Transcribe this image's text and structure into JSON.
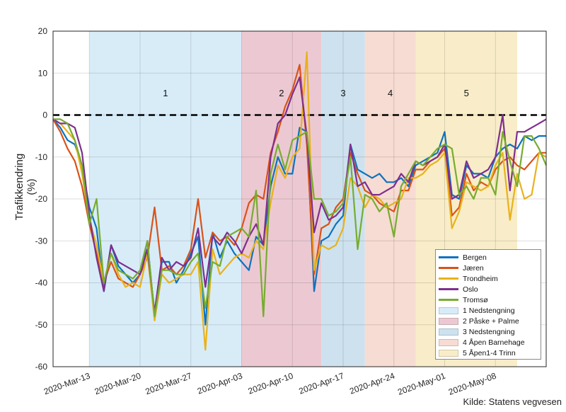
{
  "source_note": "Kilde: Statens vegvesen",
  "chart_data": {
    "type": "line",
    "title": "",
    "xlabel": "",
    "ylabel": "Trafikkendring (%)",
    "ylim": [
      -60,
      20
    ],
    "yticks": [
      "20",
      "10",
      "0",
      "-10",
      "-20",
      "-30",
      "-40",
      "-50",
      "-60"
    ],
    "x_start": "2020-Mar-08",
    "x_end": "2020-May-15",
    "xticks": [
      "2020-Mar-13",
      "2020-Mar-20",
      "2020-Mar-27",
      "2020-Apr-03",
      "2020-Apr-10",
      "2020-Apr-17",
      "2020-Apr-24",
      "2020-May-01",
      "2020-May-08"
    ],
    "reference_line": {
      "y": 0,
      "style": "dashed"
    },
    "periods": [
      {
        "label": "1",
        "name": "1 Nedstengning",
        "start": "2020-Mar-13",
        "end": "2020-Apr-03",
        "color": "#d8ecf8"
      },
      {
        "label": "2",
        "name": "2 Påske + Palme",
        "start": "2020-Apr-03",
        "end": "2020-Apr-14",
        "color": "#ecc9d2"
      },
      {
        "label": "3",
        "name": "3 Nedstengning",
        "start": "2020-Apr-14",
        "end": "2020-Apr-20",
        "color": "#cde2ee"
      },
      {
        "label": "4",
        "name": "4 Åpen Barnehage",
        "start": "2020-Apr-20",
        "end": "2020-Apr-27",
        "color": "#f6dcd2"
      },
      {
        "label": "5",
        "name": "5 Åpen1-4 Trinn",
        "start": "2020-Apr-27",
        "end": "2020-May-11",
        "color": "#f8edc8"
      }
    ],
    "series": [
      {
        "name": "Bergen",
        "color": "#0e72bd",
        "values": [
          -1,
          -3,
          -6,
          -7,
          -12,
          -22,
          -27,
          -42,
          -31,
          -36,
          -38,
          -40,
          -38,
          -30,
          -48,
          -35,
          -35,
          -40,
          -37,
          -33,
          -29,
          -50,
          -28,
          -34,
          -30,
          -33,
          -35,
          -37,
          -29,
          -31,
          -17,
          -10,
          -14,
          -14,
          -3,
          -4,
          -42,
          -30,
          -29,
          -26,
          -24,
          -7,
          -13,
          -14,
          -15,
          -14,
          -16,
          -16,
          -15,
          -17,
          -12,
          -11,
          -10,
          -9,
          -4,
          -19,
          -20,
          -12,
          -14,
          -14,
          -15,
          -10,
          -8,
          -7,
          -8,
          -5,
          -6,
          -5,
          -5
        ]
      },
      {
        "name": "Jæren",
        "color": "#d95319",
        "values": [
          -1,
          -4,
          -8,
          -11,
          -17,
          -26,
          -33,
          -40,
          -35,
          -39,
          -40,
          -41,
          -38,
          -34,
          -22,
          -37,
          -36,
          -38,
          -36,
          -32,
          -20,
          -34,
          -28,
          -30,
          -29,
          -31,
          -27,
          -21,
          -19,
          -20,
          -9,
          -4,
          2,
          6,
          12,
          -7,
          -38,
          -27,
          -26,
          -22,
          -20,
          -9,
          -14,
          -18,
          -19,
          -21,
          -22,
          -23,
          -18,
          -18,
          -13,
          -13,
          -11,
          -10,
          -8,
          -24,
          -22,
          -14,
          -18,
          -16,
          -17,
          -13,
          -11,
          -10,
          -12,
          -13,
          -11,
          -9,
          -9
        ]
      },
      {
        "name": "Trondheim",
        "color": "#e8b21b",
        "values": [
          -1,
          -2,
          -4,
          -6,
          -14,
          -25,
          -31,
          -40,
          -33,
          -38,
          -41,
          -40,
          -41,
          -33,
          -49,
          -38,
          -40,
          -39,
          -38,
          -38,
          -35,
          -56,
          -32,
          -38,
          -36,
          -34,
          -33,
          -34,
          -30,
          -32,
          -21,
          -12,
          -15,
          -10,
          -8,
          15,
          -37,
          -31,
          -32,
          -31,
          -27,
          -15,
          -17,
          -22,
          -19,
          -20,
          -22,
          -21,
          -20,
          -15,
          -15,
          -14,
          -12,
          -11,
          -9,
          -27,
          -23,
          -16,
          -17,
          -18,
          -17,
          -12,
          -9,
          -25,
          -14,
          -20,
          -19,
          -9,
          -10
        ]
      },
      {
        "name": "Oslo",
        "color": "#7e2f8e",
        "values": [
          -1,
          -2,
          -2,
          -3,
          -9,
          -24,
          -34,
          -42,
          -31,
          -35,
          -36,
          -37,
          -38,
          -32,
          -47,
          -34,
          -37,
          -35,
          -36,
          -34,
          -27,
          -41,
          -29,
          -31,
          -28,
          -30,
          -33,
          -29,
          -26,
          -31,
          -10,
          -2,
          0,
          5,
          9,
          -5,
          -28,
          -21,
          -25,
          -24,
          -22,
          -7,
          -17,
          -16,
          -19,
          -19,
          -18,
          -17,
          -14,
          -16,
          -11,
          -12,
          -11,
          -10,
          -7,
          -20,
          -19,
          -11,
          -15,
          -14,
          -13,
          -10,
          0,
          -18,
          -4,
          -4,
          -3,
          -2,
          -1
        ]
      },
      {
        "name": "Tromsø",
        "color": "#77ac30",
        "values": [
          -1,
          -1,
          -2,
          -6,
          -12,
          -26,
          -20,
          -40,
          -33,
          -37,
          -38,
          -39,
          -37,
          -30,
          -48,
          -37,
          -37,
          -38,
          -38,
          -35,
          -33,
          -46,
          -35,
          -36,
          -29,
          -28,
          -27,
          -29,
          -18,
          -48,
          -14,
          -7,
          -13,
          -6,
          -5,
          -4,
          -20,
          -20,
          -24,
          -23,
          -21,
          -10,
          -32,
          -19,
          -20,
          -23,
          -21,
          -29,
          -17,
          -14,
          -11,
          -12,
          -10,
          -8,
          -7,
          -8,
          -19,
          -17,
          -20,
          -15,
          -15,
          -19,
          -4,
          -11,
          -17,
          -5,
          -5,
          -8,
          -12
        ]
      }
    ]
  }
}
